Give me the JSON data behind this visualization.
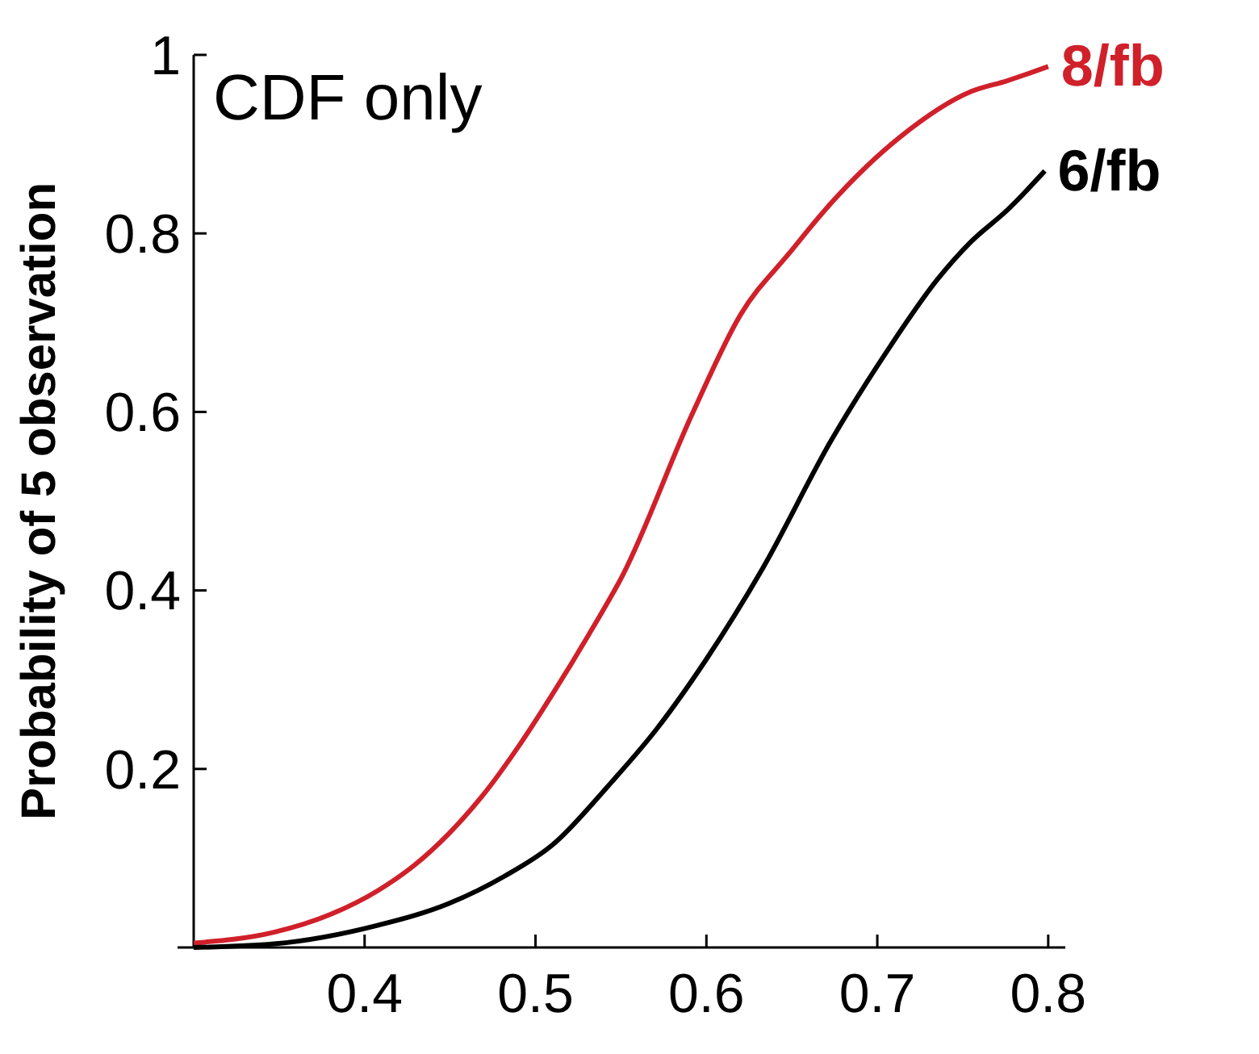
{
  "chart_data": {
    "type": "line",
    "ylabel": "Probability of  5 observation",
    "annotations": [
      "CDF only"
    ],
    "xlim": [
      0.3,
      0.81
    ],
    "xticks": [
      0.4,
      0.5,
      0.6,
      0.7,
      0.8
    ],
    "ylim": [
      0,
      1
    ],
    "yticks": [
      0.2,
      0.4,
      0.6,
      0.8,
      1
    ],
    "grid": false,
    "marker": "none",
    "line_style": "solid",
    "series": [
      {
        "name": "8/fb",
        "color": "#d0202a",
        "x": [
          0.3,
          0.347,
          0.38,
          0.408,
          0.429,
          0.449,
          0.469,
          0.49,
          0.51,
          0.531,
          0.551,
          0.592,
          0.62,
          0.649,
          0.673,
          0.714,
          0.755,
          0.776,
          0.8
        ],
        "values": [
          0.005,
          0.017,
          0.037,
          0.064,
          0.092,
          0.127,
          0.17,
          0.225,
          0.284,
          0.35,
          0.417,
          0.599,
          0.709,
          0.779,
          0.834,
          0.909,
          0.959,
          0.971,
          0.987
        ]
      },
      {
        "name": "6/fb",
        "color": "#000000",
        "x": [
          0.3,
          0.347,
          0.408,
          0.449,
          0.482,
          0.51,
          0.543,
          0.571,
          0.6,
          0.633,
          0.673,
          0.706,
          0.735,
          0.755,
          0.776,
          0.798
        ],
        "values": [
          0,
          0.004,
          0.025,
          0.049,
          0.08,
          0.115,
          0.182,
          0.245,
          0.323,
          0.425,
          0.568,
          0.669,
          0.748,
          0.791,
          0.826,
          0.87
        ]
      }
    ]
  }
}
